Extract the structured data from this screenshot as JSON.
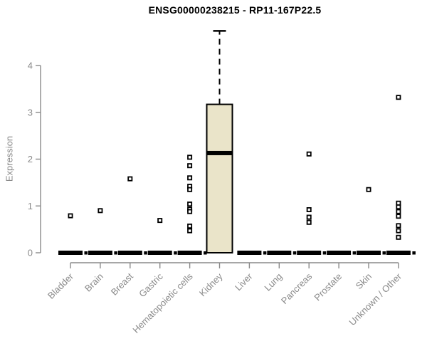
{
  "chart_data": {
    "type": "boxplot",
    "title": "ENSG00000238215 - RP11-167P22.5",
    "xlabel": "",
    "ylabel": "Expression",
    "ylim": [
      0,
      4.8
    ],
    "yticks": [
      0,
      1,
      2,
      3,
      4
    ],
    "grid": false,
    "legend": "none",
    "categories": [
      "Bladder",
      "Brain",
      "Breast",
      "Gastric",
      "Hematopoietic cells",
      "Kidney",
      "Liver",
      "Lung",
      "Pancreas",
      "Prostate",
      "Skin",
      "Unknown / Other"
    ],
    "series": [
      {
        "name": "Bladder",
        "q1": 0,
        "median": 0,
        "q3": 0,
        "whisker_low": 0,
        "whisker_high": 0,
        "outliers": [
          0.79
        ]
      },
      {
        "name": "Brain",
        "q1": 0,
        "median": 0,
        "q3": 0,
        "whisker_low": 0,
        "whisker_high": 0,
        "outliers": [
          0.9
        ]
      },
      {
        "name": "Breast",
        "q1": 0,
        "median": 0,
        "q3": 0,
        "whisker_low": 0,
        "whisker_high": 0,
        "outliers": [
          1.58
        ]
      },
      {
        "name": "Gastric",
        "q1": 0,
        "median": 0,
        "q3": 0,
        "whisker_low": 0,
        "whisker_high": 0,
        "outliers": [
          0.69
        ]
      },
      {
        "name": "Hematopoietic cells",
        "q1": 0,
        "median": 0,
        "q3": 0,
        "whisker_low": 0,
        "whisker_high": 0,
        "outliers": [
          2.04,
          1.86,
          1.6,
          1.42,
          1.35,
          1.04,
          0.93,
          0.88,
          0.57,
          0.47
        ]
      },
      {
        "name": "Kidney",
        "q1": 0,
        "median": 2.13,
        "q3": 3.17,
        "whisker_low": 0,
        "whisker_high": 4.74,
        "outliers": []
      },
      {
        "name": "Liver",
        "q1": 0,
        "median": 0,
        "q3": 0,
        "whisker_low": 0,
        "whisker_high": 0,
        "outliers": []
      },
      {
        "name": "Lung",
        "q1": 0,
        "median": 0,
        "q3": 0,
        "whisker_low": 0,
        "whisker_high": 0,
        "outliers": []
      },
      {
        "name": "Pancreas",
        "q1": 0,
        "median": 0,
        "q3": 0,
        "whisker_low": 0,
        "whisker_high": 0,
        "outliers": [
          2.11,
          0.92,
          0.76,
          0.65
        ]
      },
      {
        "name": "Prostate",
        "q1": 0,
        "median": 0,
        "q3": 0,
        "whisker_low": 0,
        "whisker_high": 0,
        "outliers": []
      },
      {
        "name": "Skin",
        "q1": 0,
        "median": 0,
        "q3": 0,
        "whisker_low": 0,
        "whisker_high": 0,
        "outliers": [
          1.35
        ]
      },
      {
        "name": "Unknown / Other",
        "q1": 0,
        "median": 0,
        "q3": 0,
        "whisker_low": 0,
        "whisker_high": 0,
        "outliers": [
          3.32,
          1.06,
          0.98,
          0.88,
          0.78,
          0.58,
          0.47,
          0.33
        ]
      }
    ],
    "colors": {
      "box_fill": "#EAE4C9",
      "box_stroke": "#000000",
      "median": "#000000",
      "outlier_stroke": "#000000",
      "outlier_fill": "#FFFFFF",
      "axis": "#8a8a8a",
      "tick_text": "#8a8a8a",
      "title_text": "#000000",
      "background": "#FFFFFF"
    }
  }
}
